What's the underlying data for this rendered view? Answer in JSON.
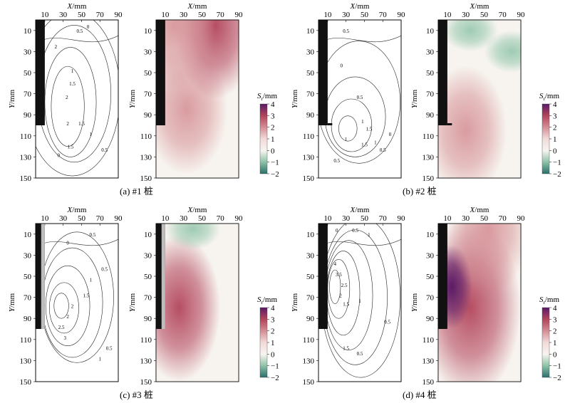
{
  "axis": {
    "x_title_var": "X",
    "x_title_unit": "/mm",
    "y_title_var": "Y",
    "y_title_unit": "/mm",
    "x_ticks": [
      10,
      30,
      50,
      70,
      90
    ],
    "y_ticks": [
      10,
      30,
      50,
      70,
      90,
      110,
      130,
      150
    ],
    "xlim": [
      0,
      90
    ],
    "ylim": [
      0,
      150
    ]
  },
  "colorbar": {
    "title_var": "S",
    "title_sub": "r",
    "title_unit": "/mm",
    "ticks": [
      4,
      3,
      2,
      1,
      0,
      -1,
      -2
    ],
    "range": [
      -2,
      4
    ],
    "colors": {
      "min": "#2a6f6b",
      "low": "#8fc4a9",
      "zero": "#f7f4ef",
      "mid": "#d48c92",
      "high": "#b3455c",
      "max": "#5a1a66"
    }
  },
  "captions": [
    "(a) #1 桩",
    "(b) #2 桩",
    "(c) #3 桩",
    "(d) #4 桩"
  ],
  "chart_data": [
    {
      "type": "heatmap",
      "panel": "(a) #1 桩",
      "pile": {
        "x_range": [
          0,
          10
        ],
        "y_range": [
          0,
          100
        ]
      },
      "contour_labels": [
        "2",
        "1.5",
        "2",
        "0.5",
        "0",
        "1",
        "1.5",
        "2",
        "1.5",
        "1",
        "0.5",
        "0"
      ],
      "peaks": [
        {
          "x": 33,
          "y": 85,
          "value": 2.0
        },
        {
          "x": 65,
          "y": 5,
          "value": 2.5
        },
        {
          "x": 20,
          "y": 5,
          "value": 1.2
        }
      ]
    },
    {
      "type": "heatmap",
      "panel": "(b) #2 桩",
      "pile": {
        "x_range": [
          0,
          10
        ],
        "y_range": [
          0,
          100
        ]
      },
      "contour_labels": [
        "0.5",
        "0",
        "0.5",
        "1",
        "1.5",
        "1.5",
        "1",
        "0.5",
        "0",
        "0.5",
        "1"
      ],
      "peaks": [
        {
          "x": 30,
          "y": 105,
          "value": 2.0
        },
        {
          "x": 35,
          "y": 10,
          "value": -0.8
        },
        {
          "x": 80,
          "y": 30,
          "value": -0.5
        }
      ]
    },
    {
      "type": "heatmap",
      "panel": "(c) #3 桩",
      "pile": {
        "x_range": [
          0,
          10
        ],
        "y_range": [
          0,
          100
        ]
      },
      "contour_labels": [
        "0.5",
        "0",
        "0.5",
        "1",
        "1.5",
        "2",
        "2",
        "2.5",
        "3",
        "0.5",
        "1"
      ],
      "peaks": [
        {
          "x": 25,
          "y": 80,
          "value": 3.0
        },
        {
          "x": 40,
          "y": 5,
          "value": -0.5
        }
      ]
    },
    {
      "type": "heatmap",
      "panel": "(d) #4 桩",
      "pile": {
        "x_range": [
          0,
          10
        ],
        "y_range": [
          0,
          100
        ]
      },
      "contour_labels": [
        "0",
        "0.5",
        "1",
        "2.5",
        "1.5",
        "2",
        "1",
        "4",
        "3.5",
        "1.5",
        "0.5",
        "0.5"
      ],
      "peaks": [
        {
          "x": 15,
          "y": 60,
          "value": 4.0
        },
        {
          "x": 55,
          "y": 5,
          "value": 2.0
        }
      ]
    }
  ]
}
